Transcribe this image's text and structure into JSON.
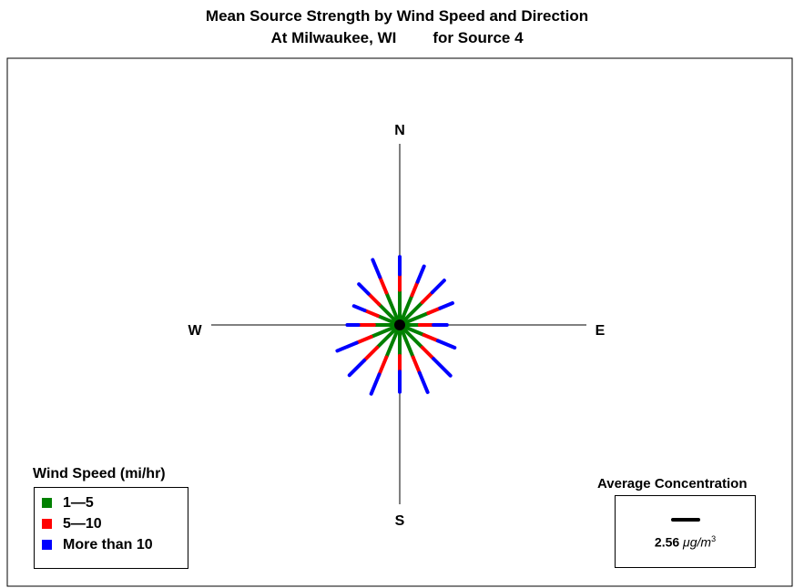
{
  "chart_data": {
    "type": "wind-rose",
    "title": "Mean Source Strength by Wind Speed and Direction",
    "subtitle_location": "At Milwaukee, WI",
    "subtitle_source": "for Source 4",
    "compass": {
      "north": "N",
      "east": "E",
      "south": "S",
      "west": "W"
    },
    "legend_title": "Wind Speed (mi/hr)",
    "series": [
      {
        "name": "1—5",
        "color": "#008000"
      },
      {
        "name": "5—10",
        "color": "#ff0000"
      },
      {
        "name": "More than 10",
        "color": "#0000ff"
      }
    ],
    "directions": [
      {
        "angle": 0,
        "segments": [
          6.0,
          2.7,
          3.0
        ]
      },
      {
        "angle": 22.5,
        "segments": [
          5.5,
          2.5,
          2.9
        ]
      },
      {
        "angle": 45,
        "segments": [
          5.5,
          2.4,
          2.9
        ]
      },
      {
        "angle": 67.5,
        "segments": [
          5.3,
          2.2,
          2.3
        ]
      },
      {
        "angle": 90,
        "segments": [
          3.4,
          2.4,
          2.3
        ]
      },
      {
        "angle": 112.5,
        "segments": [
          4.5,
          2.6,
          3.1
        ]
      },
      {
        "angle": 135,
        "segments": [
          5.5,
          2.7,
          4.1
        ]
      },
      {
        "angle": 157.5,
        "segments": [
          6.0,
          2.9,
          3.6
        ]
      },
      {
        "angle": 180,
        "segments": [
          5.3,
          2.7,
          3.5
        ]
      },
      {
        "angle": 202.5,
        "segments": [
          6.0,
          3.2,
          3.6
        ]
      },
      {
        "angle": 225,
        "segments": [
          5.5,
          3.1,
          3.6
        ]
      },
      {
        "angle": 247.5,
        "segments": [
          5.3,
          2.7,
          3.6
        ]
      },
      {
        "angle": 270,
        "segments": [
          4.4,
          2.7,
          1.9
        ]
      },
      {
        "angle": 292.5,
        "segments": [
          4.1,
          2.4,
          2.0
        ]
      },
      {
        "angle": 315,
        "segments": [
          5.0,
          2.6,
          2.3
        ]
      },
      {
        "angle": 337.5,
        "segments": [
          6.0,
          2.9,
          3.2
        ]
      }
    ],
    "average_concentration": {
      "title": "Average Concentration",
      "value": "2.56",
      "unit_base": "μg/m",
      "unit_exp": "3"
    }
  }
}
